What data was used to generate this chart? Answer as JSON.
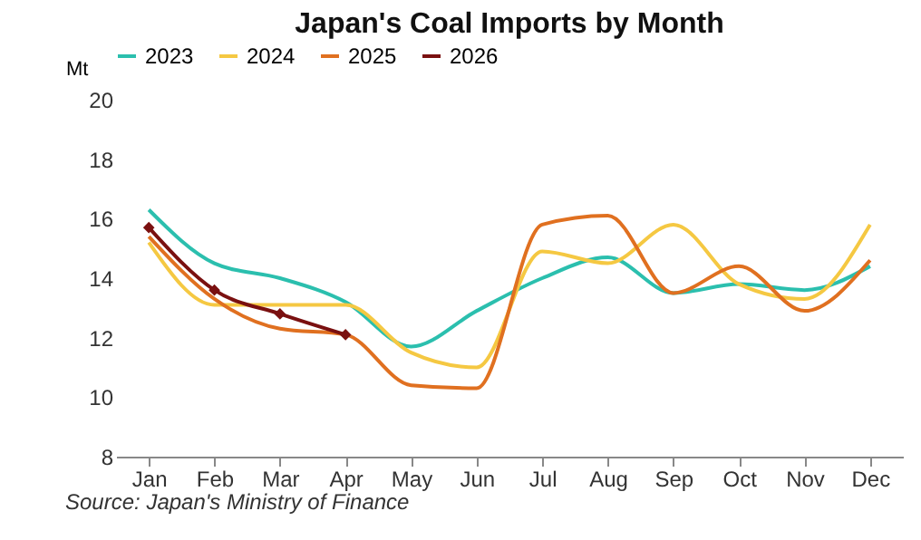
{
  "chart_data": {
    "type": "line",
    "title": "Japan's Coal Imports by Month",
    "ylabel": "Mt",
    "categories": [
      "Jan",
      "Feb",
      "Mar",
      "Apr",
      "May",
      "Jun",
      "Jul",
      "Aug",
      "Sep",
      "Oct",
      "Nov",
      "Dec"
    ],
    "series": [
      {
        "name": "2023",
        "color": "#2bbfae",
        "values": [
          16.3,
          14.5,
          14.0,
          13.2,
          11.7,
          12.9,
          14.0,
          14.7,
          13.5,
          13.8,
          13.6,
          14.4
        ]
      },
      {
        "name": "2024",
        "color": "#f5c842",
        "values": [
          15.2,
          13.1,
          13.1,
          13.1,
          11.5,
          11.0,
          14.9,
          14.5,
          15.8,
          13.8,
          13.3,
          15.8
        ]
      },
      {
        "name": "2025",
        "color": "#e07020",
        "values": [
          15.4,
          13.3,
          12.3,
          12.1,
          10.4,
          10.3,
          15.8,
          16.1,
          13.5,
          14.4,
          12.9,
          14.6
        ]
      },
      {
        "name": "2026",
        "color": "#7a1010",
        "marker": "diamond",
        "values": [
          15.7,
          13.6,
          12.8,
          12.1,
          null,
          null,
          null,
          null,
          null,
          null,
          null,
          null
        ]
      }
    ],
    "ylim": [
      8,
      20
    ],
    "yticks": [
      8,
      10,
      12,
      14,
      16,
      18,
      20
    ],
    "grid": false,
    "legend": "top",
    "annotations": [
      "Source: Japan's Ministry of Finance"
    ]
  }
}
